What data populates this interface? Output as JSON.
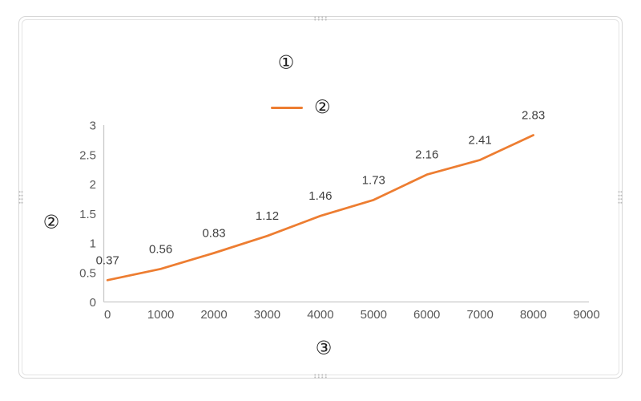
{
  "chart": {
    "title": "①",
    "legend": {
      "label": "②"
    },
    "y_axis_title": "②",
    "x_axis_title": "③",
    "frame": {
      "resize_handles": [
        "top",
        "bottom",
        "left",
        "right"
      ]
    }
  },
  "colors": {
    "series_line": "#ED7D31",
    "axis_line": "#c9c9c9",
    "tick_label": "#595959",
    "data_label": "#404040"
  },
  "chart_data": {
    "type": "line",
    "title": "①",
    "xlabel": "③",
    "ylabel": "②",
    "legend_entries": [
      "②"
    ],
    "legend_position": "top",
    "grid": false,
    "x": [
      0,
      1000,
      2000,
      3000,
      4000,
      5000,
      6000,
      7000,
      8000
    ],
    "series": [
      {
        "name": "②",
        "color": "#ED7D31",
        "values": [
          0.37,
          0.56,
          0.83,
          1.12,
          1.46,
          1.73,
          2.16,
          2.41,
          2.83
        ],
        "data_labels": [
          "0.37",
          "0.56",
          "0.83",
          "1.12",
          "1.46",
          "1.73",
          "2.16",
          "2.41",
          "2.83"
        ]
      }
    ],
    "xlim": [
      0,
      9000
    ],
    "ylim": [
      0,
      3
    ],
    "x_ticks": [
      0,
      1000,
      2000,
      3000,
      4000,
      5000,
      6000,
      7000,
      8000,
      9000
    ],
    "y_ticks": [
      0,
      0.5,
      1,
      1.5,
      2,
      2.5,
      3
    ]
  }
}
